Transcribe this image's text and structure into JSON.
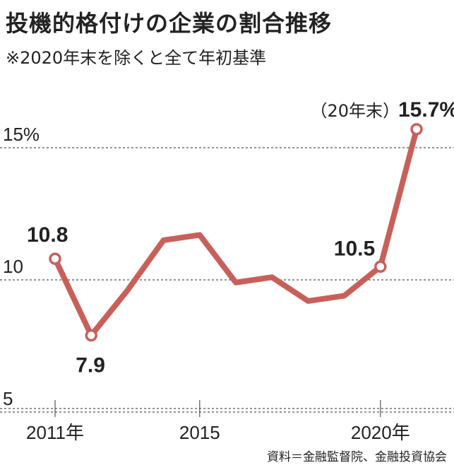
{
  "title": "投機的格付けの企業の割合推移",
  "subtitle": "※2020年末を除くと全て年初基準",
  "source": "資料＝金融監督院、金融投資協会",
  "colors": {
    "line": "#c8605a",
    "grid": "#555555",
    "text": "#222222"
  },
  "chart_data": {
    "type": "line",
    "x": [
      "2011",
      "2012",
      "2013",
      "2014",
      "2015",
      "2016",
      "2017",
      "2018",
      "2019",
      "2020",
      "20年末"
    ],
    "values": [
      10.8,
      7.9,
      9.6,
      11.5,
      11.7,
      9.9,
      10.1,
      9.2,
      9.4,
      10.5,
      15.7
    ],
    "ylim": [
      5,
      17
    ],
    "y_ticks": [
      {
        "value": 5,
        "label": "5"
      },
      {
        "value": 10,
        "label": "10"
      },
      {
        "value": 15,
        "label": "15%"
      }
    ],
    "x_ticks": [
      {
        "index": 0,
        "label": "2011年"
      },
      {
        "index": 4,
        "label": "2015"
      },
      {
        "index": 9,
        "label": "2020年"
      }
    ],
    "data_labels": [
      {
        "index": 0,
        "text": "10.8"
      },
      {
        "index": 1,
        "text": "7.9"
      },
      {
        "index": 9,
        "text": "10.5"
      },
      {
        "index": 10,
        "text": "15.7%"
      }
    ],
    "markers": [
      0,
      1,
      9,
      10
    ],
    "annotation": {
      "index": 10,
      "text": "（20年末）"
    },
    "grid": true
  }
}
